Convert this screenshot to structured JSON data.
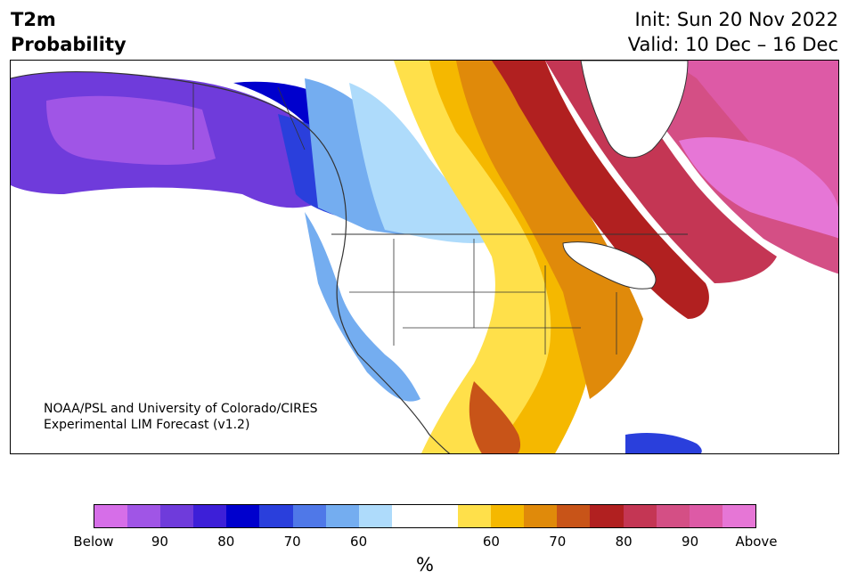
{
  "title": {
    "line1": "T2m",
    "line2": "Probability"
  },
  "dates": {
    "init": "Init: Sun 20 Nov 2022",
    "valid": "Valid: 10 Dec – 16 Dec"
  },
  "credit": {
    "line1": "NOAA/PSL and University of Colorado/CIRES",
    "line2": "Experimental LIM Forecast (v1.2)"
  },
  "colorbar": {
    "colors": [
      "#d66ee8",
      "#a055e6",
      "#6f3bdb",
      "#3d1fd8",
      "#0000cd",
      "#2a3fdc",
      "#4f78e8",
      "#74adf0",
      "#aedbfb",
      "#ffffff",
      "#ffffff",
      "#ffe04a",
      "#f5b800",
      "#e08a0a",
      "#c85418",
      "#b12020",
      "#c43654",
      "#d44f85",
      "#dd5aa6",
      "#e676d6"
    ],
    "ticks": [
      "Below",
      "90",
      "80",
      "70",
      "60",
      "60",
      "70",
      "80",
      "90",
      "Above"
    ],
    "unit": "%"
  },
  "map_colors": {
    "deep_purple": "#6f3bdb",
    "violet": "#a055e6",
    "blue": "#0000cd",
    "mid_blue": "#2a3fdc",
    "light_blue": "#74adf0",
    "pale_blue": "#aedbfb",
    "yellow": "#ffe04a",
    "gold": "#f5b800",
    "orange": "#e08a0a",
    "burnt": "#c85418",
    "red": "#b12020",
    "rose": "#c43654",
    "pink": "#d44f85",
    "magenta": "#dd5aa6",
    "orchid": "#e676d6"
  }
}
